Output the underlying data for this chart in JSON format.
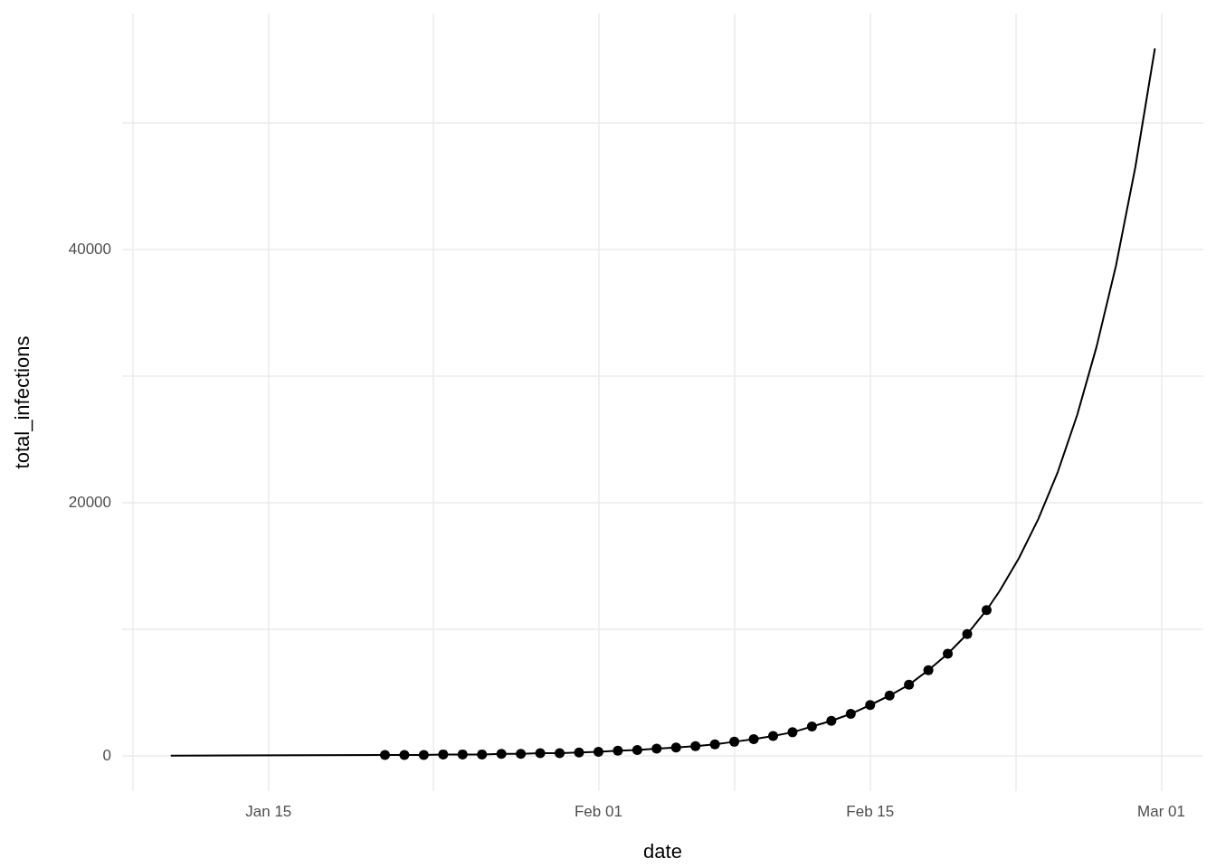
{
  "chart_data": {
    "type": "line",
    "xlabel": "date",
    "ylabel": "total_infections",
    "xlim": [
      "--01-07T11:00",
      "--03-03T04:00"
    ],
    "xticks": [
      {
        "value": "--01-08",
        "label": null
      },
      {
        "value": "--01-15",
        "label": "Jan 15"
      },
      {
        "value": "--01-23T12:00",
        "label": null
      },
      {
        "value": "--02-01",
        "label": "Feb 01"
      },
      {
        "value": "--02-08",
        "label": null
      },
      {
        "value": "--02-15",
        "label": "Feb 15"
      },
      {
        "value": "--02-22T12:00",
        "label": null
      },
      {
        "value": "--03-01",
        "label": "Mar 01"
      }
    ],
    "ylim": [
      -2800,
      58600
    ],
    "yticks": [
      0,
      {
        "value": 10000,
        "label": null
      },
      20000,
      {
        "value": 30000,
        "label": null
      },
      40000,
      {
        "value": 50000,
        "label": null
      }
    ],
    "grid": true,
    "series": [
      {
        "color": "#000000",
        "marker": "none",
        "line_style": "solid",
        "x": [
          "--01-10",
          "--01-21",
          "--01-22",
          "--01-23",
          "--01-24",
          "--01-25",
          "--01-26",
          "--01-27",
          "--01-28",
          "--01-29",
          "--01-30",
          "--01-31",
          "--02-01",
          "--02-02",
          "--02-03",
          "--02-04",
          "--02-05",
          "--02-06",
          "--02-07",
          "--02-08",
          "--02-09",
          "--02-10",
          "--02-11",
          "--02-12",
          "--02-13",
          "--02-14",
          "--02-15",
          "--02-16",
          "--02-17",
          "--02-18",
          "--02-19",
          "--02-20",
          "--02-21",
          "--02-21T16:00",
          "--02-22T16:00",
          "--02-23T16:00",
          "--02-24T16:00",
          "--02-25T16:00",
          "--02-26T16:00",
          "--02-27T16:00",
          "--02-28T16:00",
          "--02-29T16:00"
        ],
        "values": [
          0,
          50,
          50,
          50,
          100,
          100,
          100,
          150,
          150,
          200,
          200,
          250,
          300,
          400,
          450,
          550,
          650,
          750,
          900,
          1100,
          1300,
          1550,
          1850,
          2300,
          2750,
          3300,
          4000,
          4750,
          5600,
          6750,
          8050,
          9600,
          11500,
          13000,
          15600,
          18700,
          22400,
          26900,
          32300,
          38700,
          46500,
          55800
        ]
      },
      {
        "type": "scatter",
        "color": "#000000",
        "marker": "circle",
        "x": [
          "--01-21",
          "--01-22",
          "--01-23",
          "--01-24",
          "--01-25",
          "--01-26",
          "--01-27",
          "--01-28",
          "--01-29",
          "--01-30",
          "--01-31",
          "--02-01",
          "--02-02",
          "--02-03",
          "--02-04",
          "--02-05",
          "--02-06",
          "--02-07",
          "--02-08",
          "--02-09",
          "--02-10",
          "--02-11",
          "--02-12",
          "--02-13",
          "--02-14",
          "--02-15",
          "--02-16",
          "--02-17",
          "--02-18",
          "--02-19",
          "--02-20",
          "--02-21"
        ],
        "values": [
          50,
          50,
          50,
          100,
          100,
          100,
          150,
          150,
          200,
          200,
          250,
          300,
          400,
          450,
          550,
          650,
          750,
          900,
          1100,
          1300,
          1550,
          1850,
          2300,
          2750,
          3300,
          4000,
          4750,
          5600,
          6750,
          8050,
          9600,
          11500
        ]
      }
    ]
  }
}
